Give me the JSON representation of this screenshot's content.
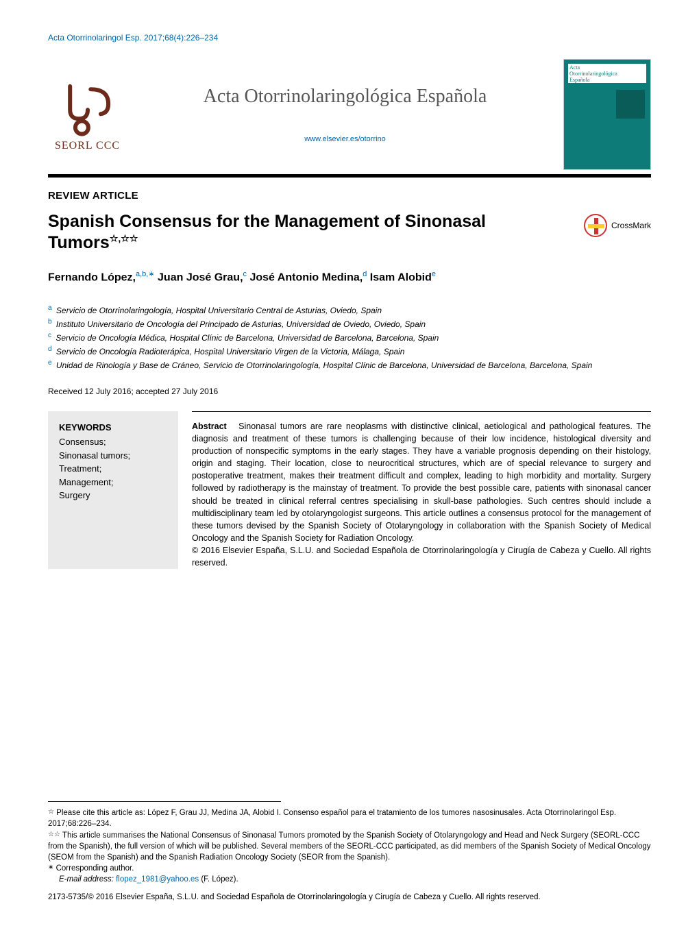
{
  "citation_top": "Acta Otorrinolaringol Esp. 2017;68(4):226–234",
  "header": {
    "logo_text": "SEORL CCC",
    "journal_title": "Acta Otorrinolaringológica Española",
    "journal_link": "www.elsevier.es/otorrino",
    "cover_title": "Acta\nOtorrinolaringológica\nEspañola"
  },
  "article_type": "REVIEW ARTICLE",
  "title": "Spanish Consensus for the Management of Sinonasal Tumors",
  "title_marks": "☆,☆☆",
  "crossmark_label": "CrossMark",
  "authors_html": "Fernando López,<sup>a,b,∗</sup> Juan José Grau,<sup>c</sup> José Antonio Medina,<sup>d</sup> Isam Alobid<sup>e</sup>",
  "affiliations": [
    {
      "sup": "a",
      "text": "Servicio de Otorrinolaringología, Hospital Universitario Central de Asturias, Oviedo, Spain"
    },
    {
      "sup": "b",
      "text": "Instituto Universitario de Oncología del Principado de Asturias, Universidad de Oviedo, Oviedo, Spain"
    },
    {
      "sup": "c",
      "text": "Servicio de Oncología Médica, Hospital Clínic de Barcelona, Universidad de Barcelona, Barcelona, Spain"
    },
    {
      "sup": "d",
      "text": "Servicio de Oncología Radioterápica, Hospital Universitario Virgen de la Victoria, Málaga, Spain"
    },
    {
      "sup": "e",
      "text": "Unidad de Rinología y Base de Cráneo, Servicio de Otorrinolaringología, Hospital Clínic de Barcelona, Universidad de Barcelona, Barcelona, Spain"
    }
  ],
  "dates": "Received 12 July 2016; accepted 27 July 2016",
  "keywords": {
    "heading": "KEYWORDS",
    "list": "Consensus;\nSinonasal tumors;\nTreatment;\nManagement;\nSurgery"
  },
  "abstract": {
    "lead": "Abstract",
    "body": "Sinonasal tumors are rare neoplasms with distinctive clinical, aetiological and pathological features. The diagnosis and treatment of these tumors is challenging because of their low incidence, histological diversity and production of nonspecific symptoms in the early stages. They have a variable prognosis depending on their histology, origin and staging. Their location, close to neurocritical structures, which are of special relevance to surgery and postoperative treatment, makes their treatment difficult and complex, leading to high morbidity and mortality. Surgery followed by radiotherapy is the mainstay of treatment. To provide the best possible care, patients with sinonasal cancer should be treated in clinical referral centres specialising in skull-base pathologies. Such centres should include a multidisciplinary team led by otolaryngologist surgeons. This article outlines a consensus protocol for the management of these tumors devised by the Spanish Society of Otolaryngology in collaboration with the Spanish Society of Medical Oncology and the Spanish Society for Radiation Oncology.",
    "copyright": "© 2016 Elsevier España, S.L.U. and Sociedad Española de Otorrinolaringología y Cirugía de Cabeza y Cuello. All rights reserved."
  },
  "footnotes": {
    "f1_mark": "☆",
    "f1": "Please cite this article as: López F, Grau JJ, Medina JA, Alobid I. Consenso español para el tratamiento de los tumores nasosinusales. Acta Otorrinolaringol Esp. 2017;68:226–234.",
    "f2_mark": "☆☆",
    "f2": "This article summarises the National Consensus of Sinonasal Tumors promoted by the Spanish Society of Otolaryngology and Head and Neck Surgery (SEORL-CCC from the Spanish), the full version of which will be published. Several members of the SEORL-CCC participated, as did members of the Spanish Society of Medical Oncology (SEOM from the Spanish) and the Spanish Radiation Oncology Society (SEOR from the Spanish).",
    "corr_mark": "∗",
    "corr": "Corresponding author.",
    "email_label": "E-mail address:",
    "email": "flopez_1981@yahoo.es",
    "email_suffix": "(F. López)."
  },
  "issn": "2173-5735/© 2016 Elsevier España, S.L.U. and Sociedad Española de Otorrinolaringología y Cirugía de Cabeza y Cuello. All rights reserved.",
  "colors": {
    "link": "#0066aa",
    "logo": "#6b2a1a",
    "cover": "#0d7c78",
    "keywords_bg": "#eaeaea"
  }
}
